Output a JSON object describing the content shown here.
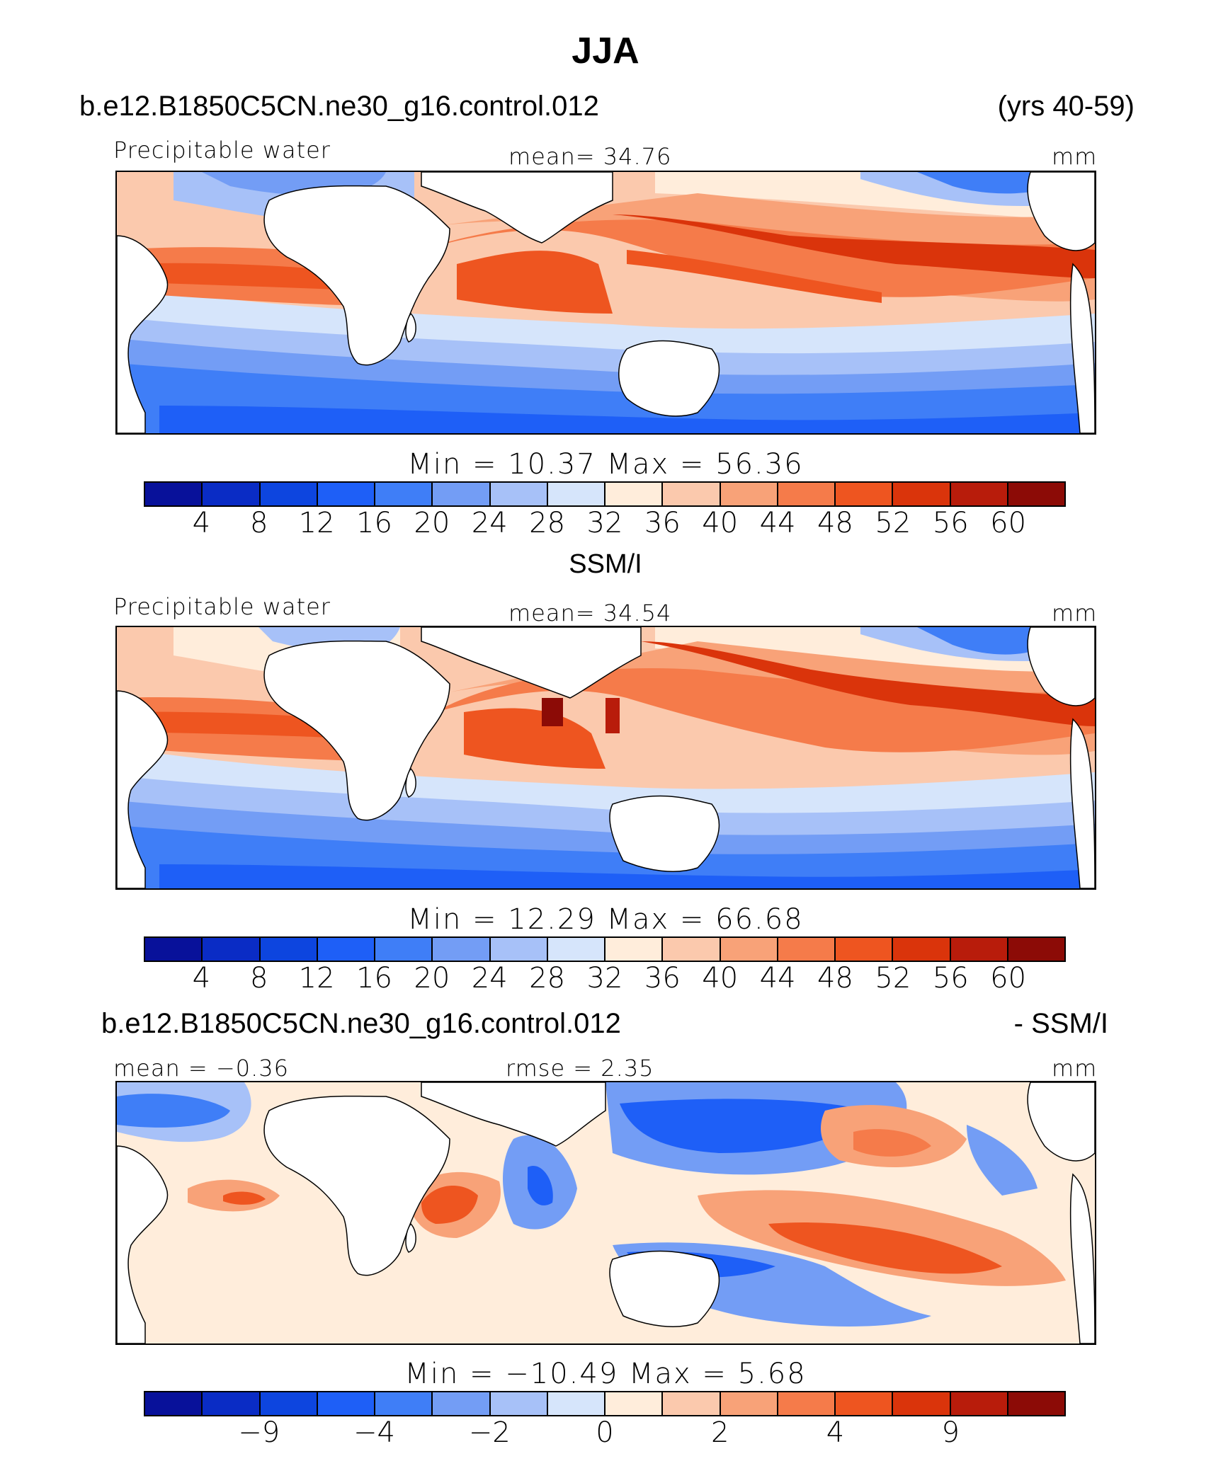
{
  "title": "JJA",
  "panels": [
    {
      "case_left": "b.e12.B1850C5CN.ne30_g16.control.012",
      "case_right": "(yrs 40-59)",
      "variable": "Precipitable water",
      "center_stat": "mean=   34.76",
      "units": "mm",
      "minmax": "Min  =    10.37  Max  =    56.36",
      "colorbar": {
        "colors": [
          "#08119a",
          "#0a2cc5",
          "#0d45df",
          "#1e5ff7",
          "#3f7ef7",
          "#739df5",
          "#a7c1f8",
          "#d6e5fb",
          "#ffeddb",
          "#fbc9ad",
          "#f8a278",
          "#f57b4a",
          "#ee5520",
          "#da340b",
          "#b81c0b",
          "#8c0b06"
        ],
        "labels": [
          "4",
          "8",
          "12",
          "16",
          "20",
          "24",
          "28",
          "32",
          "36",
          "40",
          "44",
          "48",
          "52",
          "56",
          "60"
        ]
      }
    },
    {
      "case_left": "SSM/I",
      "case_right": "",
      "variable": "Precipitable water",
      "center_stat": "mean=   34.54",
      "units": "mm",
      "minmax": "Min  =    12.29  Max  =    66.68",
      "colorbar": {
        "colors": [
          "#08119a",
          "#0a2cc5",
          "#0d45df",
          "#1e5ff7",
          "#3f7ef7",
          "#739df5",
          "#a7c1f8",
          "#d6e5fb",
          "#ffeddb",
          "#fbc9ad",
          "#f8a278",
          "#f57b4a",
          "#ee5520",
          "#da340b",
          "#b81c0b",
          "#8c0b06"
        ],
        "labels": [
          "4",
          "8",
          "12",
          "16",
          "20",
          "24",
          "28",
          "32",
          "36",
          "40",
          "44",
          "48",
          "52",
          "56",
          "60"
        ]
      }
    },
    {
      "case_left": "b.e12.B1850C5CN.ne30_g16.control.012",
      "case_right": "- SSM/I",
      "stat_left": "mean  =   −0.36",
      "center_stat": "rmse  =      2.35",
      "units": "mm",
      "minmax": "Min  =  −10.49  Max  =     5.68",
      "colorbar": {
        "colors": [
          "#08119a",
          "#0a2cc5",
          "#0d45df",
          "#1e5ff7",
          "#3f7ef7",
          "#739df5",
          "#a7c1f8",
          "#d6e5fb",
          "#ffeddb",
          "#fbc9ad",
          "#f8a278",
          "#f57b4a",
          "#ee5520",
          "#da340b",
          "#b81c0b",
          "#8c0b06"
        ],
        "labels": [
          "−9",
          "−4",
          "−2",
          "0",
          "2",
          "4",
          "9"
        ]
      }
    }
  ]
}
